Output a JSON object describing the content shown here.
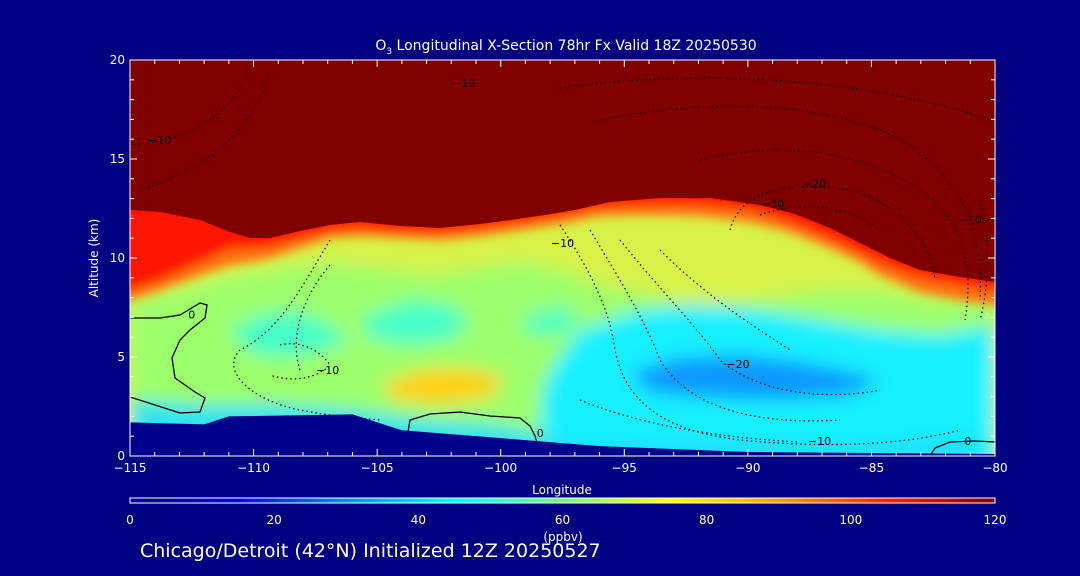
{
  "chart_data": {
    "type": "heatmap",
    "title_prefix": "O",
    "title_subscript": "3",
    "title_suffix": " Longitudinal X-Section 78hr  Fx Valid 18Z 20250530",
    "xlabel": "Longitude",
    "ylabel": "Altitude (km)",
    "xlim": [
      -115,
      -80
    ],
    "ylim": [
      0,
      20
    ],
    "x_ticks": [
      "-115",
      "-110",
      "-105",
      "-100",
      "-95",
      "-90",
      "-85",
      "-80"
    ],
    "y_ticks": [
      "0",
      "5",
      "10",
      "15",
      "20"
    ],
    "colorbar": {
      "label": "(ppbv)",
      "range": [
        0,
        120
      ],
      "ticks": [
        "0",
        "20",
        "40",
        "60",
        "80",
        "100",
        "120"
      ],
      "colors": [
        "#00008c",
        "#0000ff",
        "#0090ff",
        "#00ffff",
        "#70ff80",
        "#ffff00",
        "#ffa000",
        "#ff2000",
        "#800000"
      ]
    },
    "surface_height_km": [
      {
        "lon": -115,
        "alt": 1.7
      },
      {
        "lon": -112,
        "alt": 1.6
      },
      {
        "lon": -111,
        "alt": 2.0
      },
      {
        "lon": -106,
        "alt": 2.1
      },
      {
        "lon": -104,
        "alt": 1.3
      },
      {
        "lon": -100,
        "alt": 0.9
      },
      {
        "lon": -96,
        "alt": 0.5
      },
      {
        "lon": -90,
        "alt": 0.2
      },
      {
        "lon": -80,
        "alt": 0.1
      }
    ],
    "contour_labels": [
      {
        "text": "-10",
        "lon": -101.5,
        "alt": 18.8
      },
      {
        "text": "-10",
        "lon": -113.8,
        "alt": 15.9
      },
      {
        "text": "-20",
        "lon": -87.3,
        "alt": 13.7
      },
      {
        "text": "-30",
        "lon": -89.0,
        "alt": 12.7
      },
      {
        "text": "-10",
        "lon": -81.0,
        "alt": 11.9
      },
      {
        "text": "-10",
        "lon": -97.5,
        "alt": 10.7
      },
      {
        "text": "0",
        "lon": -112.5,
        "alt": 7.1
      },
      {
        "text": "-10",
        "lon": -107.0,
        "alt": 4.3
      },
      {
        "text": "-20",
        "lon": -90.4,
        "alt": 4.6
      },
      {
        "text": "-10",
        "lon": -87.1,
        "alt": 0.7
      },
      {
        "text": "0",
        "lon": -98.4,
        "alt": 1.1
      },
      {
        "text": "0",
        "lon": -81.1,
        "alt": 0.7
      }
    ]
  },
  "footer_text": "Chicago/Detroit (42°N) Initialized 12Z 20250527"
}
